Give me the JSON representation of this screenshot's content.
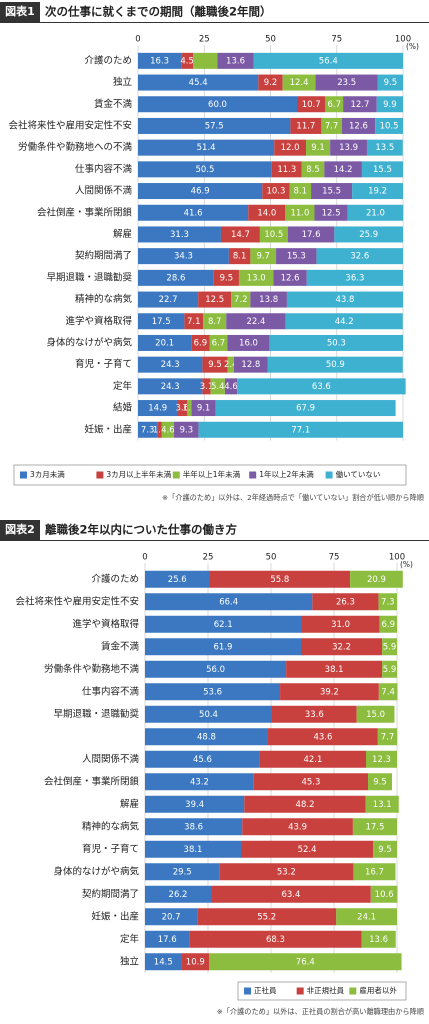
{
  "chart_data": [
    {
      "type": "bar",
      "orientation": "horizontal",
      "stacked": true,
      "figure_label": "図表1",
      "title": "次の仕事に就くまでの期間（離職後2年間）",
      "unit_label": "(%)",
      "categories": [
        "介護のため",
        "独立",
        "賃金不満",
        "会社将来性や雇用安定性不安",
        "労働条件や勤務地への不満",
        "仕事内容不満",
        "人間関係不満",
        "会社倒産・事業所閉鎖",
        "解雇",
        "契約期間満了",
        "早期退職・退職勧奨",
        "精神的な病気",
        "進学や資格取得",
        "身体的なけがや病気",
        "育児・子育て",
        "定年",
        "結婚",
        "妊娠・出産"
      ],
      "series": [
        {
          "name": "3カ月未満",
          "color": "#3b78c1",
          "values": [
            16.3,
            45.4,
            60.0,
            57.5,
            51.4,
            50.5,
            46.9,
            41.6,
            31.3,
            34.3,
            28.6,
            22.7,
            17.5,
            20.1,
            24.3,
            24.3,
            14.9,
            7.3
          ],
          "value_labels": [
            "16.3",
            "45.4",
            "60.0",
            "57.5",
            "51.4",
            "50.5",
            "46.9",
            "41.6",
            "31.3",
            "34.3",
            "28.6",
            "22.7",
            "17.5",
            "20.1",
            "24.3",
            "24.3",
            "14.9",
            "7.3"
          ]
        },
        {
          "name": "3カ月以上半年未満",
          "color": "#c9413f",
          "values": [
            4.5,
            9.2,
            10.7,
            11.7,
            12.0,
            11.3,
            10.3,
            14.0,
            14.7,
            8.1,
            9.5,
            12.5,
            7.1,
            6.9,
            9.5,
            3.1,
            3.6,
            1.7
          ],
          "value_labels": [
            "4.5",
            "9.2",
            "10.7",
            "11.7",
            "12.0",
            "11.3",
            "10.3",
            "14.0",
            "14.7",
            "8.1",
            "9.5",
            "12.5",
            "7.1",
            "6.9",
            "9.5",
            "3.1",
            "3.6",
            "1.7"
          ]
        },
        {
          "name": "半年以上1年未満",
          "color": "#8cbd3f",
          "values": [
            9.2,
            12.4,
            6.7,
            7.7,
            9.1,
            8.5,
            8.1,
            11.0,
            10.5,
            9.7,
            13.0,
            7.2,
            8.7,
            6.7,
            2.4,
            5.4,
            1.7,
            4.6
          ],
          "value_labels": [
            null,
            "12.4",
            "6.7",
            "7.7",
            "9.1",
            "8.5",
            "8.1",
            "11.0",
            "10.5",
            "9.7",
            "13.0",
            "7.2",
            "8.7",
            "6.7",
            "2.4",
            "5.4",
            "1.7",
            "4.6"
          ]
        },
        {
          "name": "1年以上2年未満",
          "color": "#7b59a5",
          "values": [
            13.6,
            23.5,
            12.7,
            12.6,
            13.9,
            14.2,
            15.5,
            12.5,
            17.6,
            15.3,
            12.6,
            13.8,
            22.4,
            16.0,
            12.8,
            4.6,
            9.1,
            9.3
          ],
          "value_labels": [
            "13.6",
            "23.5",
            "12.7",
            "12.6",
            "13.9",
            "14.2",
            "15.5",
            "12.5",
            "17.6",
            "15.3",
            "12.6",
            "13.8",
            "22.4",
            "16.0",
            "12.8",
            "4.6",
            "9.1",
            "9.3"
          ]
        },
        {
          "name": "働いていない",
          "color": "#3fb1d0",
          "values": [
            56.4,
            9.5,
            9.9,
            10.5,
            13.5,
            15.5,
            19.2,
            21.0,
            25.9,
            32.6,
            36.3,
            43.8,
            44.2,
            50.3,
            50.9,
            63.6,
            67.9,
            77.1
          ],
          "value_labels": [
            "56.4",
            "9.5",
            "9.9",
            "10.5",
            "13.5",
            "15.5",
            "19.2",
            "21.0",
            "25.9",
            "32.6",
            "36.3",
            "43.8",
            "44.2",
            "50.3",
            "50.9",
            "63.6",
            "67.9",
            "77.1"
          ]
        }
      ],
      "xlim": [
        0,
        100
      ],
      "xticks": [
        0,
        25,
        50,
        75,
        100
      ],
      "grid": true,
      "note": "※「介護のため」以外は、2年経過時点で「働いていない」割合が低い順から降順"
    },
    {
      "type": "bar",
      "orientation": "horizontal",
      "stacked": true,
      "figure_label": "図表2",
      "title": "離職後2年以内についた仕事の働き方",
      "unit_label": "(%)",
      "categories": [
        "介護のため",
        "会社将来性や雇用安定性不安",
        "進学や資格取得",
        "賃金不満",
        "労働条件や勤務地不満",
        "仕事内容不満",
        "早期退職・退職勧奨",
        null,
        "人間関係不満",
        "会社倒産・事業所閉鎖",
        "解雇",
        "精神的な病気",
        "育児・子育て",
        "身体的なけがや病気",
        "契約期間満了",
        "妊娠・出産",
        "定年",
        "独立"
      ],
      "series": [
        {
          "name": "正社員",
          "color": "#3b78c1",
          "values": [
            25.6,
            66.4,
            62.1,
            61.9,
            56.0,
            53.6,
            50.4,
            48.8,
            45.6,
            43.2,
            39.4,
            38.6,
            38.1,
            29.5,
            26.2,
            20.7,
            17.6,
            14.5
          ],
          "value_labels": [
            "25.6",
            "66.4",
            "62.1",
            "61.9",
            "56.0",
            "53.6",
            "50.4",
            "48.8",
            "45.6",
            "43.2",
            "39.4",
            "38.6",
            "38.1",
            "29.5",
            "26.2",
            "20.7",
            "17.6",
            "14.5"
          ]
        },
        {
          "name": "非正規社員",
          "color": "#c9413f",
          "values": [
            55.8,
            26.3,
            31.0,
            32.2,
            38.1,
            39.2,
            33.6,
            43.6,
            42.1,
            45.3,
            48.2,
            43.9,
            52.4,
            53.2,
            63.4,
            55.2,
            68.3,
            10.9
          ],
          "value_labels": [
            "55.8",
            "26.3",
            "31.0",
            "32.2",
            "38.1",
            "39.2",
            "33.6",
            "43.6",
            "42.1",
            "45.3",
            "48.2",
            "43.9",
            "52.4",
            "53.2",
            "63.4",
            "55.2",
            "68.3",
            "10.9"
          ]
        },
        {
          "name": "雇用者以外",
          "color": "#8cbd3f",
          "values": [
            20.9,
            7.3,
            6.9,
            5.9,
            5.9,
            7.4,
            15.0,
            7.7,
            12.3,
            9.5,
            13.1,
            17.5,
            9.5,
            16.7,
            10.6,
            24.1,
            13.6,
            76.4
          ],
          "value_labels": [
            "20.9",
            "7.3",
            "6.9",
            "5.9",
            "5.9",
            "7.4",
            "15.0",
            "7.7",
            "12.3",
            "9.5",
            "13.1",
            "17.5",
            "9.5",
            "16.7",
            "10.6",
            "24.1",
            "13.6",
            "76.4"
          ]
        }
      ],
      "xlim": [
        0,
        100
      ],
      "xticks": [
        0,
        25,
        50,
        75,
        100
      ],
      "grid": true,
      "note": "※「介護のため」以外は、正社員の割合が高い離職理由から降順"
    }
  ]
}
